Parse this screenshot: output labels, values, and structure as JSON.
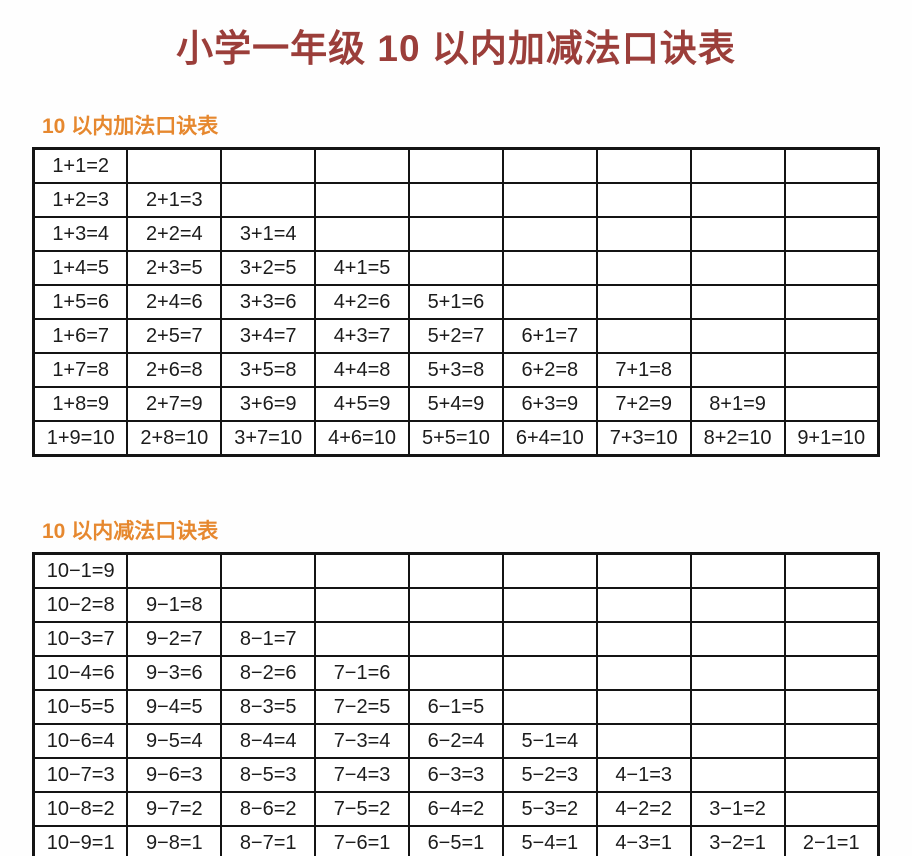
{
  "title": "小学一年级 10 以内加减法口诀表",
  "colors": {
    "title_text": "#9b3e3a",
    "section_header_text": "#e6882f",
    "table_border": "#141414",
    "cell_text": "#1c1c1c",
    "background": "#fefefe"
  },
  "addition": {
    "header": "10 以内加法口诀表",
    "rows": [
      [
        "1+1=2",
        "",
        "",
        "",
        "",
        "",
        "",
        "",
        ""
      ],
      [
        "1+2=3",
        "2+1=3",
        "",
        "",
        "",
        "",
        "",
        "",
        ""
      ],
      [
        "1+3=4",
        "2+2=4",
        "3+1=4",
        "",
        "",
        "",
        "",
        "",
        ""
      ],
      [
        "1+4=5",
        "2+3=5",
        "3+2=5",
        "4+1=5",
        "",
        "",
        "",
        "",
        ""
      ],
      [
        "1+5=6",
        "2+4=6",
        "3+3=6",
        "4+2=6",
        "5+1=6",
        "",
        "",
        "",
        ""
      ],
      [
        "1+6=7",
        "2+5=7",
        "3+4=7",
        "4+3=7",
        "5+2=7",
        "6+1=7",
        "",
        "",
        ""
      ],
      [
        "1+7=8",
        "2+6=8",
        "3+5=8",
        "4+4=8",
        "5+3=8",
        "6+2=8",
        "7+1=8",
        "",
        ""
      ],
      [
        "1+8=9",
        "2+7=9",
        "3+6=9",
        "4+5=9",
        "5+4=9",
        "6+3=9",
        "7+2=9",
        "8+1=9",
        ""
      ],
      [
        "1+9=10",
        "2+8=10",
        "3+7=10",
        "4+6=10",
        "5+5=10",
        "6+4=10",
        "7+3=10",
        "8+2=10",
        "9+1=10"
      ]
    ]
  },
  "subtraction": {
    "header": "10 以内减法口诀表",
    "rows": [
      [
        "10−1=9",
        "",
        "",
        "",
        "",
        "",
        "",
        "",
        ""
      ],
      [
        "10−2=8",
        "9−1=8",
        "",
        "",
        "",
        "",
        "",
        "",
        ""
      ],
      [
        "10−3=7",
        "9−2=7",
        "8−1=7",
        "",
        "",
        "",
        "",
        "",
        ""
      ],
      [
        "10−4=6",
        "9−3=6",
        "8−2=6",
        "7−1=6",
        "",
        "",
        "",
        "",
        ""
      ],
      [
        "10−5=5",
        "9−4=5",
        "8−3=5",
        "7−2=5",
        "6−1=5",
        "",
        "",
        "",
        ""
      ],
      [
        "10−6=4",
        "9−5=4",
        "8−4=4",
        "7−3=4",
        "6−2=4",
        "5−1=4",
        "",
        "",
        ""
      ],
      [
        "10−7=3",
        "9−6=3",
        "8−5=3",
        "7−4=3",
        "6−3=3",
        "5−2=3",
        "4−1=3",
        "",
        ""
      ],
      [
        "10−8=2",
        "9−7=2",
        "8−6=2",
        "7−5=2",
        "6−4=2",
        "5−3=2",
        "4−2=2",
        "3−1=2",
        ""
      ],
      [
        "10−9=1",
        "9−8=1",
        "8−7=1",
        "7−6=1",
        "6−5=1",
        "5−4=1",
        "4−3=1",
        "3−2=1",
        "2−1=1"
      ]
    ]
  }
}
